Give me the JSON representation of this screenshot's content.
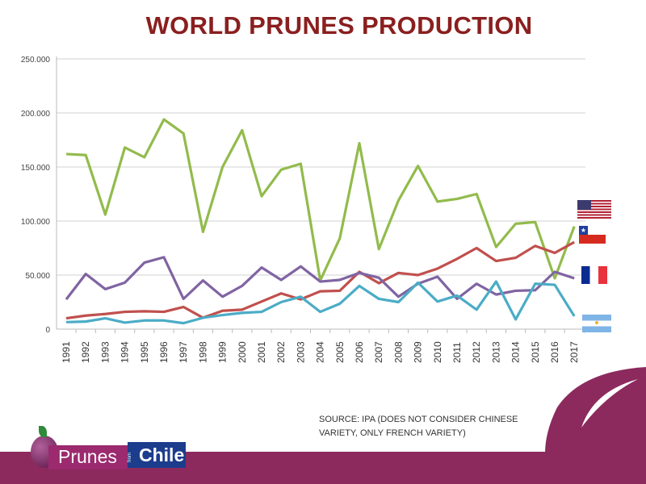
{
  "title": "WORLD PRUNES PRODUCTION",
  "source": {
    "line1": "SOURCE:  IPA (DOES NOT CONSIDER CHINESE",
    "line2": "VARIETY, ONLY FRENCH VARIETY)"
  },
  "logo": {
    "word1": "Prunes",
    "small": "from",
    "word2": "Chile"
  },
  "colors": {
    "usa": "#92bb4c",
    "chile": "#c0504d",
    "france": "#8064a2",
    "argentina": "#4bacc6",
    "brand": "#8c2a5e",
    "title": "#8a1f1f"
  },
  "chart_data": {
    "type": "line",
    "title": "WORLD PRUNES PRODUCTION",
    "xlabel": "",
    "ylabel": "",
    "ylim": [
      0,
      250000
    ],
    "yticks": [
      0,
      50000,
      100000,
      150000,
      200000,
      250000
    ],
    "ytick_labels": [
      "0",
      "50.000",
      "100.000",
      "150.000",
      "200.000",
      "250.000"
    ],
    "grid": true,
    "legend": "flags at right end of lines",
    "categories": [
      "1991",
      "1992",
      "1993",
      "1994",
      "1995",
      "1996",
      "1997",
      "1998",
      "1999",
      "2000",
      "2001",
      "2002",
      "2003",
      "2004",
      "2005",
      "2006",
      "2007",
      "2008",
      "2009",
      "2010",
      "2011",
      "2012",
      "2013",
      "2014",
      "2015",
      "2016",
      "2017"
    ],
    "series": [
      {
        "name": "USA",
        "color": "#92bb4c",
        "values": [
          162000,
          161000,
          106000,
          168000,
          159000,
          194000,
          181000,
          90000,
          150000,
          184000,
          123000,
          147500,
          153000,
          45000,
          84000,
          172000,
          74000,
          119000,
          151000,
          118000,
          120500,
          125000,
          76000,
          97500,
          99000,
          47000,
          95000
        ]
      },
      {
        "name": "Chile",
        "color": "#c0504d",
        "values": [
          10000,
          12500,
          14000,
          16000,
          16500,
          16000,
          20500,
          10500,
          17000,
          18000,
          25500,
          33000,
          27500,
          35000,
          35500,
          53000,
          42500,
          52000,
          50000,
          56000,
          65000,
          75000,
          63000,
          66000,
          77000,
          70500,
          80500
        ]
      },
      {
        "name": "France",
        "color": "#8064a2",
        "values": [
          27500,
          51000,
          37000,
          43000,
          61500,
          66500,
          28000,
          45000,
          30000,
          40000,
          57000,
          45500,
          58000,
          44000,
          45500,
          52000,
          47500,
          30000,
          42000,
          48500,
          28000,
          42000,
          32000,
          35500,
          36000,
          53000,
          47000
        ]
      },
      {
        "name": "Argentina",
        "color": "#4bacc6",
        "values": [
          6500,
          7000,
          10000,
          6000,
          8000,
          8000,
          5500,
          10500,
          13000,
          15000,
          16000,
          25000,
          30000,
          16000,
          23500,
          40000,
          28000,
          25000,
          43000,
          25500,
          31000,
          18000,
          44000,
          9000,
          42000,
          41000,
          12000
        ]
      }
    ]
  }
}
